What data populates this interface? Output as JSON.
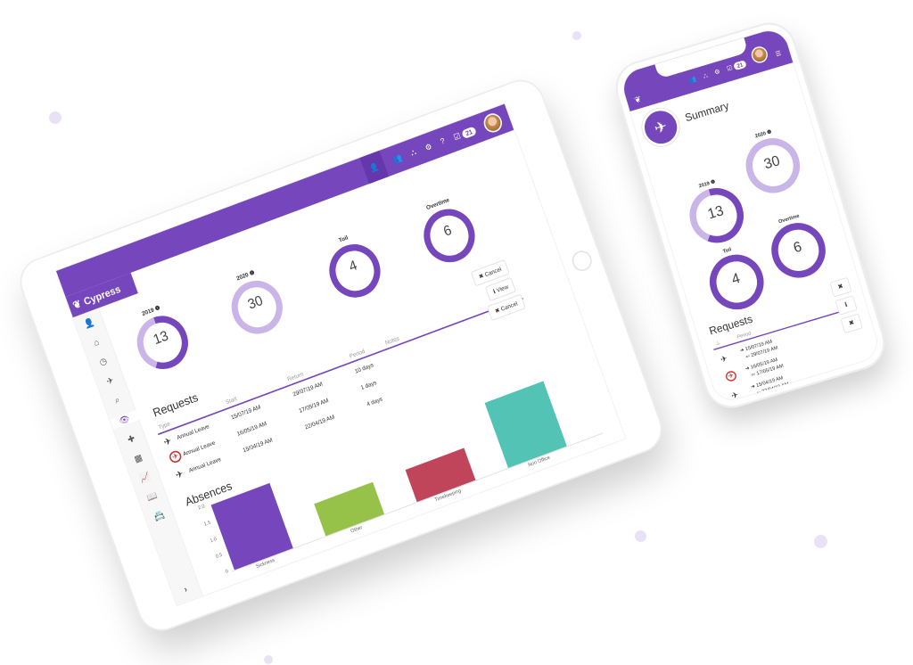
{
  "brand": {
    "name": "Cypress",
    "accent": "#7646bd",
    "light": "#c9b5e8"
  },
  "header": {
    "badge": "21",
    "help": "?"
  },
  "summary": {
    "title": "Summary"
  },
  "donuts": [
    {
      "label": "2019",
      "value": "13",
      "fill": 0.6,
      "info": true
    },
    {
      "label": "2020",
      "value": "30",
      "fill": 0,
      "info": true
    },
    {
      "label": "Toil",
      "value": "4",
      "fill": 1
    },
    {
      "label": "Overtime",
      "value": "6",
      "fill": 1
    }
  ],
  "requests": {
    "title": "Requests",
    "columns": [
      "Type",
      "Start",
      "Return",
      "Period",
      "Notes"
    ],
    "rows": [
      {
        "type": "Annual Leave",
        "icon": "plane",
        "start": "15/07/19 AM",
        "return": "29/07/19 AM",
        "period": "10 days"
      },
      {
        "type": "Annual Leave",
        "icon": "plane-cancelled",
        "start": "16/05/19 AM",
        "return": "17/05/19 AM",
        "period": "1 days"
      },
      {
        "type": "Annual Leave",
        "icon": "plane",
        "start": "15/04/19 AM",
        "return": "22/04/19 AM",
        "period": "4 days"
      }
    ],
    "actions": [
      {
        "label": "Cancel",
        "icon": "✖"
      },
      {
        "label": "View",
        "icon": "ℹ"
      },
      {
        "label": "Cancel",
        "icon": "✖"
      }
    ],
    "mobile_period_header": "Period"
  },
  "chart_data": {
    "type": "bar",
    "title": "Absences",
    "categories": [
      "Sickness",
      "Other",
      "Timekeeping",
      "Non Office"
    ],
    "values": [
      2,
      1,
      1,
      2
    ],
    "colors": [
      "#7646bd",
      "#96c24a",
      "#c0455a",
      "#52c3b4"
    ],
    "yticks": [
      "2.0",
      "1.5",
      "1.0",
      "0.5",
      "0"
    ],
    "ylim": [
      0,
      2
    ]
  }
}
